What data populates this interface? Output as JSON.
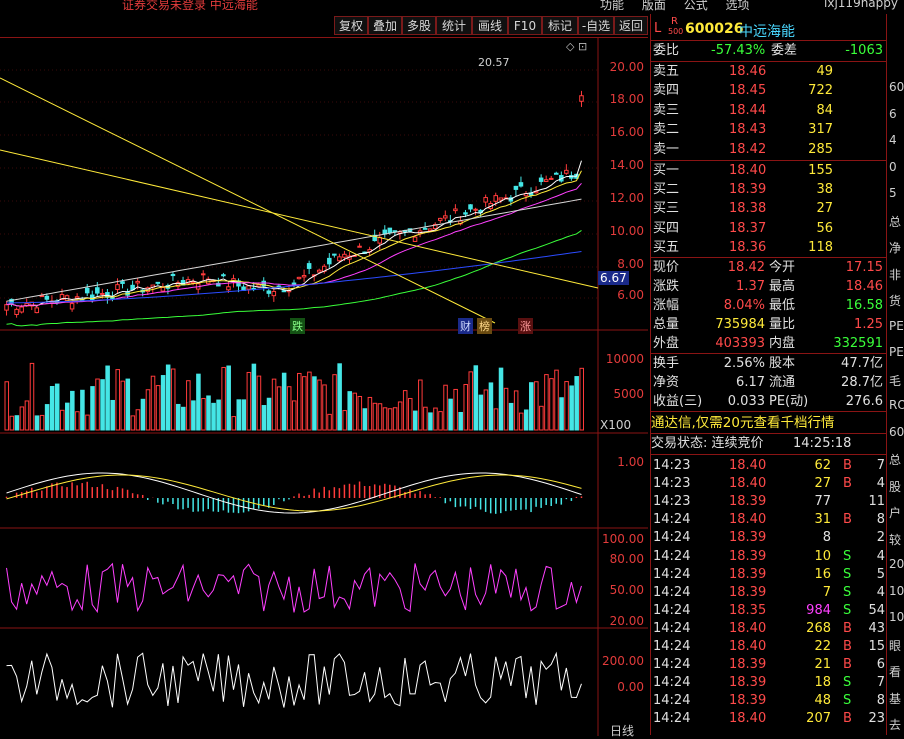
{
  "topbar": {
    "warning": "证券交易未登录  中远海能",
    "menu": [
      "功能",
      "版面",
      "公式",
      "选项"
    ],
    "user": "lxj119happy"
  },
  "toolbar": {
    "buttons": [
      "复权",
      "叠加",
      "多股",
      "统计",
      "画线",
      "F10",
      "标记",
      "-自选",
      "返回"
    ]
  },
  "chart": {
    "price_axis": [
      "20.00",
      "18.00",
      "16.00",
      "14.00",
      "12.00",
      "10.00",
      "8.00",
      "6.00"
    ],
    "last_price_tag": "6.67",
    "high_label": "20.57",
    "events": [
      "跌",
      "财",
      "榜",
      "涨"
    ],
    "volume_axis": [
      "10000",
      "5000"
    ],
    "volume_unit": "X100",
    "macd_axis": [
      "1.00"
    ],
    "rsi_axis": [
      "100.00",
      "80.00",
      "50.00",
      "20.00"
    ],
    "cci_axis": [
      "200.00",
      "0.00"
    ],
    "bottom_label": "日线",
    "colors": {
      "up": "#ff3b3b",
      "down": "#45e6e6",
      "ma5": "#ffffff",
      "ma10": "#ffea3a",
      "ma20": "#ff40ff",
      "ma60": "#3aff3a",
      "ma120": "#d8d8d8",
      "ma250": "#2b4bff"
    }
  },
  "quote": {
    "badge_l": "L",
    "badge_r": "R",
    "badge_num": "500",
    "code": "600026",
    "name": "中远海能",
    "ratio_label": "委比",
    "ratio": "-57.43%",
    "diff_label": "委差",
    "diff": "-1063",
    "asks": [
      {
        "label": "卖五",
        "price": "18.46",
        "vol": "49"
      },
      {
        "label": "卖四",
        "price": "18.45",
        "vol": "722"
      },
      {
        "label": "卖三",
        "price": "18.44",
        "vol": "84"
      },
      {
        "label": "卖二",
        "price": "18.43",
        "vol": "317"
      },
      {
        "label": "卖一",
        "price": "18.42",
        "vol": "285"
      }
    ],
    "bids": [
      {
        "label": "买一",
        "price": "18.40",
        "vol": "155"
      },
      {
        "label": "买二",
        "price": "18.39",
        "vol": "38"
      },
      {
        "label": "买三",
        "price": "18.38",
        "vol": "27"
      },
      {
        "label": "买四",
        "price": "18.37",
        "vol": "56"
      },
      {
        "label": "买五",
        "price": "18.36",
        "vol": "118"
      }
    ],
    "stats": [
      {
        "l1": "现价",
        "v1": "18.42",
        "l2": "今开",
        "v2": "17.15",
        "c1": "red",
        "c2": "red"
      },
      {
        "l1": "涨跌",
        "v1": "1.37",
        "l2": "最高",
        "v2": "18.46",
        "c1": "red",
        "c2": "red"
      },
      {
        "l1": "涨幅",
        "v1": "8.04%",
        "l2": "最低",
        "v2": "16.58",
        "c1": "red",
        "c2": "green"
      },
      {
        "l1": "总量",
        "v1": "735984",
        "l2": "量比",
        "v2": "1.25",
        "c1": "yel",
        "c2": "red"
      },
      {
        "l1": "外盘",
        "v1": "403393",
        "l2": "内盘",
        "v2": "332591",
        "c1": "red",
        "c2": "green"
      }
    ],
    "stats2": [
      {
        "l1": "换手",
        "v1": "2.56%",
        "l2": "股本",
        "v2": "47.7亿"
      },
      {
        "l1": "净资",
        "v1": "6.17",
        "l2": "流通",
        "v2": "28.7亿"
      },
      {
        "l1": "收益(三)",
        "v1": "0.033",
        "l2": "PE(动)",
        "v2": "276.6"
      }
    ],
    "promo": "通达信,仅需20元查看千档行情",
    "status_label": "交易状态: 连续竞价",
    "status_time": "14:25:18",
    "ticks": [
      {
        "t": "14:23",
        "p": "18.40",
        "v": "62",
        "s": "B",
        "n": "7"
      },
      {
        "t": "14:23",
        "p": "18.40",
        "v": "27",
        "s": "B",
        "n": "4"
      },
      {
        "t": "14:23",
        "p": "18.39",
        "v": "77",
        "s": "",
        "n": "11"
      },
      {
        "t": "14:24",
        "p": "18.40",
        "v": "31",
        "s": "B",
        "n": "8"
      },
      {
        "t": "14:24",
        "p": "18.39",
        "v": "8",
        "s": "",
        "n": "2"
      },
      {
        "t": "14:24",
        "p": "18.39",
        "v": "10",
        "s": "S",
        "n": "4"
      },
      {
        "t": "14:24",
        "p": "18.39",
        "v": "16",
        "s": "S",
        "n": "5"
      },
      {
        "t": "14:24",
        "p": "18.39",
        "v": "7",
        "s": "S",
        "n": "4"
      },
      {
        "t": "14:24",
        "p": "18.35",
        "v": "984",
        "s": "S",
        "n": "54"
      },
      {
        "t": "14:24",
        "p": "18.40",
        "v": "268",
        "s": "B",
        "n": "43"
      },
      {
        "t": "14:24",
        "p": "18.40",
        "v": "22",
        "s": "B",
        "n": "15"
      },
      {
        "t": "14:24",
        "p": "18.39",
        "v": "21",
        "s": "B",
        "n": "6"
      },
      {
        "t": "14:24",
        "p": "18.39",
        "v": "18",
        "s": "S",
        "n": "7"
      },
      {
        "t": "14:24",
        "p": "18.39",
        "v": "48",
        "s": "S",
        "n": "8"
      },
      {
        "t": "14:24",
        "p": "18.40",
        "v": "207",
        "s": "B",
        "n": "23"
      }
    ]
  },
  "strip": [
    "60",
    "6",
    "4",
    "0",
    "5",
    "总",
    "净",
    "非",
    "货",
    "PE",
    "PE",
    "毛",
    "RO",
    "60",
    "总",
    "股",
    "户",
    "较",
    "20",
    "10",
    "10",
    "眼",
    "看",
    "基",
    "去"
  ]
}
